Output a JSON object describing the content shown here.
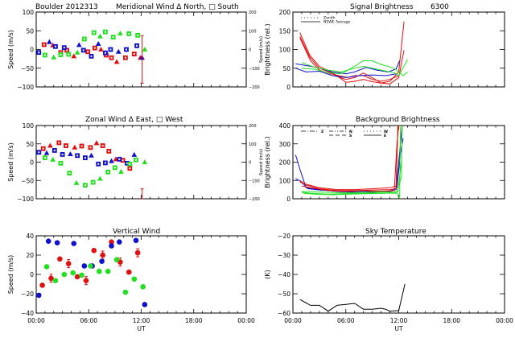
{
  "figure": {
    "station": "Boulder",
    "date": "2012313",
    "x_ticks": [
      "00:00",
      "06:00",
      "12:00",
      "18:00",
      "00:00"
    ],
    "x_label": "UT"
  },
  "colors": {
    "red": "#e01010",
    "blue": "#1010d0",
    "green": "#20e020",
    "black": "#000000"
  },
  "chart_data": [
    {
      "id": "meridional",
      "type": "scatter",
      "title": "Meridional Wind   Δ North, □ South",
      "title_prefix": "Boulder   2012313",
      "ylabel": "Speed (m/s)",
      "ylabel_right": "Speed (m/s)",
      "ylim": [
        -100,
        100
      ],
      "yticks": [
        "100",
        "50",
        "0",
        "-50",
        "-100"
      ],
      "yticks_right": [
        "200",
        "100",
        "0",
        "-100",
        "-200"
      ],
      "xlim": [
        0,
        24
      ],
      "series": [
        {
          "name": "red",
          "color": "red",
          "x": [
            0.9,
            1.9,
            2.8,
            3.5,
            4.3,
            5.9,
            6.7,
            7.4,
            8.0,
            8.6,
            9.2,
            10.2,
            11.2,
            11.9
          ],
          "y": [
            13,
            11,
            -8,
            -2,
            -18,
            -6,
            4,
            0,
            -15,
            -22,
            -33,
            -22,
            -12,
            -22
          ]
        },
        {
          "name": "blue",
          "color": "blue",
          "x": [
            0.3,
            1.5,
            2.2,
            3.2,
            4.9,
            5.4,
            6.3,
            7.1,
            7.9,
            8.5,
            9.4,
            10.3,
            11.5,
            12.1
          ],
          "y": [
            -8,
            20,
            8,
            5,
            12,
            -2,
            -18,
            15,
            -9,
            0,
            -6,
            0,
            10,
            -22
          ]
        },
        {
          "name": "green",
          "color": "green",
          "x": [
            1.0,
            2.0,
            2.8,
            3.7,
            4.7,
            5.5,
            6.6,
            7.3,
            7.9,
            8.8,
            9.6,
            10.6,
            11.6,
            12.4
          ],
          "y": [
            -15,
            -21,
            -14,
            -13,
            -8,
            28,
            45,
            35,
            47,
            33,
            43,
            42,
            38,
            0
          ]
        }
      ],
      "errorbar": {
        "x": 12.1,
        "low": -90,
        "high": 37,
        "color": "red"
      }
    },
    {
      "id": "zonal",
      "type": "scatter",
      "title": "Zonal Wind     Δ East, □ West",
      "ylabel": "Speed (m/s)",
      "ylabel_right": "Speed (m/s)",
      "ylim": [
        -100,
        100
      ],
      "yticks": [
        "100",
        "50",
        "0",
        "-50",
        "-100"
      ],
      "yticks_right": [
        "200",
        "100",
        "0",
        "-100",
        "-200"
      ],
      "xlim": [
        0,
        24
      ],
      "series": [
        {
          "name": "red",
          "color": "red",
          "x": [
            0.8,
            1.6,
            2.6,
            3.4,
            4.4,
            5.2,
            6.2,
            6.9,
            7.6,
            8.3,
            9.1,
            9.9,
            10.7
          ],
          "y": [
            37,
            45,
            53,
            45,
            40,
            44,
            40,
            52,
            45,
            30,
            8,
            5,
            -17
          ]
        },
        {
          "name": "blue",
          "color": "blue",
          "x": [
            0.3,
            1.2,
            2.1,
            3.0,
            3.9,
            4.7,
            5.6,
            6.3,
            7.1,
            7.9,
            8.6,
            9.5,
            10.4,
            11.2
          ],
          "y": [
            27,
            25,
            32,
            21,
            22,
            18,
            12,
            18,
            -5,
            -2,
            3,
            8,
            -3,
            20
          ]
        },
        {
          "name": "green",
          "color": "green",
          "x": [
            1.0,
            1.9,
            2.8,
            3.8,
            4.6,
            5.6,
            6.5,
            7.3,
            8.2,
            9.0,
            9.7,
            10.7,
            11.4,
            12.4
          ],
          "y": [
            12,
            7,
            -3,
            -30,
            -57,
            -63,
            -55,
            -45,
            -27,
            -15,
            -26,
            -5,
            6,
            0
          ]
        }
      ],
      "errorbar": {
        "x": 12.1,
        "low": -100,
        "high": -73,
        "color": "red"
      }
    },
    {
      "id": "vertical",
      "type": "scatter",
      "title": "Vertical Wind",
      "ylabel": "Speed (m/s)",
      "ylim": [
        -50,
        50
      ],
      "yticks": [
        "40",
        "20",
        "0",
        "-20",
        "-40"
      ],
      "xlim": [
        0,
        24
      ],
      "series": [
        {
          "name": "red",
          "color": "red",
          "x": [
            0.7,
            1.7,
            2.7,
            3.7,
            4.7,
            5.7,
            6.6,
            7.6,
            8.6,
            9.6,
            10.6,
            11.6
          ],
          "y": [
            -14,
            -5,
            20,
            14,
            -3,
            -8,
            31,
            25,
            42,
            16,
            3,
            28
          ]
        },
        {
          "name": "blue",
          "color": "blue",
          "x": [
            0.3,
            1.4,
            2.4,
            4.3,
            5.5,
            6.4,
            7.5,
            8.6,
            9.5,
            11.4,
            12.4
          ],
          "y": [
            -27,
            43,
            41,
            40,
            11,
            11,
            17,
            37,
            42,
            44,
            -39
          ]
        },
        {
          "name": "green",
          "color": "green",
          "x": [
            1.2,
            2.2,
            3.2,
            4.2,
            5.2,
            6.2,
            7.2,
            8.2,
            9.2,
            10.2,
            11.2,
            12.2
          ],
          "y": [
            10,
            -8,
            0,
            2,
            -1,
            11,
            4,
            4,
            19,
            -23,
            -6,
            -16
          ]
        }
      ]
    },
    {
      "id": "signal",
      "type": "line",
      "title": "Signal Brightness",
      "title_suffix": "6300",
      "ylabel": "Brightness (rel.)",
      "ylim": [
        0,
        200
      ],
      "yticks": [
        "200",
        "150",
        "100",
        "50",
        "0"
      ],
      "xlim": [
        0,
        24
      ],
      "legend": [
        {
          "label": "Zenith",
          "style": "dotted"
        },
        {
          "label": "NSWE Average",
          "style": "solid"
        }
      ],
      "legend_position": "top-left",
      "series": [
        {
          "name": "red-1",
          "color": "red",
          "x": [
            0.8,
            1.9,
            3.0,
            4.3,
            5.0,
            6.0,
            7.0,
            8.0,
            9.0,
            10.0,
            11.0,
            12.0,
            12.6
          ],
          "y": [
            145,
            85,
            55,
            40,
            30,
            12,
            15,
            20,
            14,
            10,
            15,
            40,
            175
          ]
        },
        {
          "name": "red-2",
          "color": "red",
          "x": [
            0.8,
            1.9,
            3.0,
            4.3,
            5.0,
            6.0,
            7.0,
            8.0,
            9.0,
            10.0,
            11.0,
            12.0,
            12.6
          ],
          "y": [
            135,
            80,
            50,
            38,
            28,
            20,
            25,
            37,
            25,
            10,
            8,
            25,
            98
          ]
        },
        {
          "name": "red-3",
          "color": "red",
          "x": [
            0.8,
            2.0,
            3.0,
            4.3,
            5.2,
            6.2,
            7.0,
            8.0,
            9.0,
            10.0,
            11.0,
            12.0
          ],
          "y": [
            130,
            70,
            45,
            35,
            30,
            25,
            30,
            30,
            20,
            15,
            20,
            30
          ]
        },
        {
          "name": "blue-1",
          "color": "blue",
          "x": [
            0.3,
            2.0,
            3.0,
            4.5,
            6.0,
            7.0,
            8.3,
            9.5,
            10.8,
            11.7,
            12.1
          ],
          "y": [
            62,
            55,
            50,
            40,
            35,
            40,
            52,
            45,
            40,
            48,
            70
          ]
        },
        {
          "name": "blue-2",
          "color": "blue",
          "x": [
            0.3,
            1.5,
            3.0,
            4.5,
            6.0,
            7.5,
            9.0,
            10.5,
            11.7
          ],
          "y": [
            50,
            40,
            42,
            30,
            25,
            30,
            32,
            30,
            35
          ]
        },
        {
          "name": "green-1",
          "color": "green",
          "x": [
            1.0,
            2.5,
            4.0,
            5.5,
            7.0,
            8.0,
            9.0,
            10.0,
            11.5,
            12.0,
            13.0
          ],
          "y": [
            65,
            52,
            45,
            40,
            50,
            55,
            50,
            45,
            38,
            30,
            73
          ]
        },
        {
          "name": "green-2",
          "color": "green",
          "x": [
            1.0,
            2.5,
            4.0,
            5.5,
            7.0,
            8.0,
            9.0,
            10.0,
            11.5,
            12.5,
            13.0
          ],
          "y": [
            50,
            47,
            38,
            35,
            55,
            70,
            70,
            60,
            50,
            30,
            40
          ]
        }
      ]
    },
    {
      "id": "background",
      "type": "line",
      "title": "Background Brightness",
      "ylabel": "Brightness (rel.)",
      "ylim": [
        0,
        400
      ],
      "yticks": [
        "400",
        "300",
        "200",
        "100",
        "0"
      ],
      "xlim": [
        0,
        24
      ],
      "legend": [
        {
          "label": "Z",
          "style": "dash-dot"
        },
        {
          "label": "N",
          "style": "dash-dot-dot"
        },
        {
          "label": "S",
          "style": "dashed"
        },
        {
          "label": "W",
          "style": "dotted"
        },
        {
          "label": "E",
          "style": "solid"
        }
      ],
      "legend_position": "top",
      "series": [
        {
          "name": "blue-1",
          "color": "blue",
          "x": [
            0.3,
            0.8,
            1.5,
            3.0,
            5.0,
            7.0,
            9.0,
            11.0,
            11.7,
            12.0,
            12.4
          ],
          "y": [
            240,
            160,
            60,
            50,
            40,
            35,
            35,
            40,
            50,
            200,
            400
          ]
        },
        {
          "name": "blue-2",
          "color": "blue",
          "x": [
            0.3,
            0.9,
            1.7,
            3.0,
            5.0,
            7.0,
            9.0,
            11.0,
            11.8,
            12.2,
            12.5
          ],
          "y": [
            110,
            95,
            55,
            48,
            42,
            38,
            40,
            42,
            60,
            250,
            330
          ]
        },
        {
          "name": "red-1",
          "color": "red",
          "x": [
            0.8,
            1.5,
            3.0,
            5.0,
            7.0,
            9.0,
            11.0,
            11.7,
            11.9,
            12.1
          ],
          "y": [
            90,
            80,
            60,
            50,
            50,
            55,
            60,
            70,
            400,
            420
          ]
        },
        {
          "name": "red-2",
          "color": "red",
          "x": [
            0.8,
            1.5,
            3.0,
            5.0,
            7.0,
            9.0,
            11.0,
            11.7,
            11.9,
            12.1
          ],
          "y": [
            100,
            75,
            55,
            45,
            45,
            48,
            50,
            55,
            380,
            410
          ]
        },
        {
          "name": "red-3",
          "color": "red",
          "x": [
            1.0,
            2.0,
            4.0,
            6.0,
            8.0,
            10.0,
            11.5,
            11.8,
            12.0
          ],
          "y": [
            70,
            60,
            45,
            40,
            45,
            40,
            45,
            300,
            400
          ]
        },
        {
          "name": "green-1",
          "color": "green",
          "x": [
            1.0,
            2.0,
            4.0,
            6.0,
            8.0,
            10.0,
            11.8,
            12.1,
            12.2
          ],
          "y": [
            35,
            30,
            25,
            28,
            30,
            32,
            30,
            0,
            400
          ]
        },
        {
          "name": "green-2",
          "color": "green",
          "x": [
            1.0,
            2.0,
            4.0,
            6.0,
            8.0,
            10.0,
            11.8,
            12.3,
            12.4
          ],
          "y": [
            40,
            38,
            35,
            32,
            35,
            38,
            35,
            120,
            400
          ]
        },
        {
          "name": "green-3",
          "color": "green",
          "x": [
            1.2,
            2.5,
            4.5,
            6.5,
            8.5,
            10.5,
            11.9,
            12.3
          ],
          "y": [
            30,
            25,
            22,
            25,
            28,
            30,
            40,
            200
          ]
        }
      ]
    },
    {
      "id": "skytemp",
      "type": "line",
      "title": "Sky Temperature",
      "ylabel": "(K)",
      "ylim": [
        -60,
        -20
      ],
      "yticks": [
        "-20",
        "-30",
        "-40",
        "-50",
        "-60"
      ],
      "xlim": [
        0,
        24
      ],
      "series": [
        {
          "name": "sky-temperature",
          "color": "black",
          "x": [
            0.8,
            2.0,
            3.0,
            4.0,
            5.0,
            6.0,
            7.0,
            8.0,
            9.0,
            10.0,
            10.5,
            11.0,
            11.7,
            12.0,
            12.7
          ],
          "y": [
            -53,
            -56,
            -56,
            -59,
            -56,
            -55.5,
            -55,
            -58,
            -58,
            -57.5,
            -58,
            -59,
            -58.8,
            -58.8,
            -45
          ]
        }
      ]
    }
  ]
}
